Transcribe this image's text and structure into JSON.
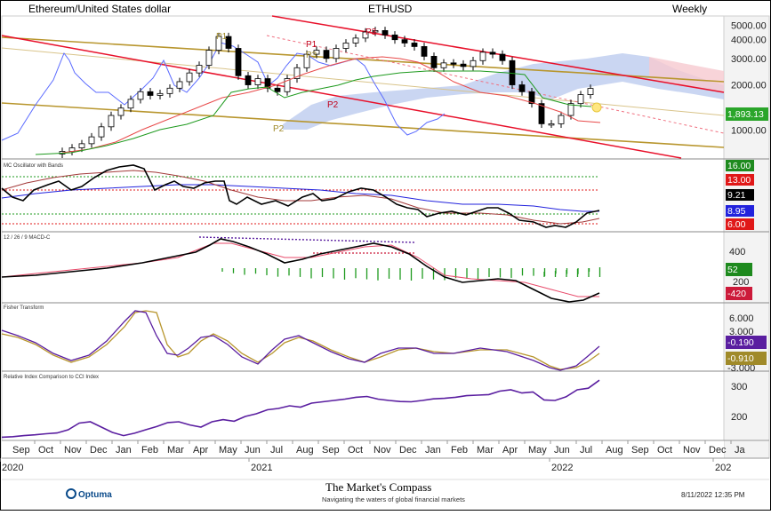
{
  "header": {
    "left_title": "Ethereum/United States dollar",
    "center_title": "ETHUSD",
    "right_title": "Weekly"
  },
  "chart_data": [
    {
      "type": "candlestick",
      "panel": "price",
      "yscale": "log",
      "ylim": [
        650,
        5600
      ],
      "yticks": [
        "5000.00",
        "4000.00",
        "3000.00",
        "2000.00",
        "1000.00"
      ],
      "ytick_values": [
        5000,
        4000,
        3000,
        2000,
        1000
      ],
      "last_price_label": "1,893.13",
      "last_price": 1893.13,
      "annotations": [
        {
          "text": "P1",
          "color": "#a08a2a"
        },
        {
          "text": "P2",
          "color": "#a08a2a"
        },
        {
          "text": "P1",
          "color": "#c0001a"
        },
        {
          "text": "P3",
          "color": "#a08a2a"
        },
        {
          "text": "P2",
          "color": "#c0001a"
        },
        {
          "text": "P3",
          "color": "#c0001a"
        }
      ],
      "close_series": [
        720,
        760,
        810,
        900,
        1050,
        1250,
        1400,
        1600,
        1800,
        1700,
        1750,
        1900,
        2100,
        2400,
        2700,
        3400,
        4200,
        3500,
        2300,
        2000,
        2200,
        1900,
        1800,
        2200,
        2600,
        3200,
        3400,
        3000,
        3500,
        3800,
        4100,
        4500,
        4600,
        4300,
        4000,
        3800,
        3600,
        3100,
        2600,
        2800,
        2750,
        2650,
        2900,
        3300,
        3200,
        2900,
        2000,
        1800,
        1500,
        1100,
        1100,
        1250,
        1500,
        1720,
        1893
      ]
    },
    {
      "type": "line",
      "panel": "momentum",
      "title": "MC Oscillator with Bands",
      "badges": [
        {
          "text": "16.00",
          "color": "#1e8a1e"
        },
        {
          "text": "13.00",
          "color": "#e01818"
        },
        {
          "text": "9.21",
          "color": "#000000"
        },
        {
          "text": "8.95",
          "color": "#2222dd"
        },
        {
          "text": "6.00",
          "color": "#e01818"
        }
      ]
    },
    {
      "type": "line",
      "panel": "macd",
      "title": "12 / 26 / 9 MACD-C",
      "yticks": [
        "400",
        "200"
      ],
      "badges": [
        {
          "text": "52",
          "color": "#1e8a1e"
        },
        {
          "text": "-420",
          "color": "#cc1a3a"
        }
      ]
    },
    {
      "type": "line",
      "panel": "fisher",
      "title": "Fisher Transform",
      "yticks": [
        "6.000",
        "3.000",
        "-3.000"
      ],
      "badges": [
        {
          "text": "-0.190",
          "color": "#5a1ea0"
        },
        {
          "text": "-0.910",
          "color": "#a08a2a"
        }
      ]
    },
    {
      "type": "line",
      "panel": "relative",
      "title": "Relative Index Comparison to CCI Index",
      "yticks": [
        "300",
        "200"
      ],
      "series": [
        {
          "values": [
            112,
            114,
            118,
            121,
            125,
            128,
            140,
            165,
            170,
            150,
            130,
            118,
            127,
            140,
            152,
            167,
            170,
            158,
            150,
            170,
            178,
            172,
            190,
            200,
            215,
            220,
            230,
            225,
            240,
            245,
            250,
            255,
            262,
            265,
            255,
            250,
            246,
            245,
            250,
            256,
            258,
            262,
            268,
            270,
            272,
            285,
            290,
            278,
            282,
            252,
            250,
            264,
            290,
            296,
            326
          ]
        }
      ]
    }
  ],
  "x_axis": {
    "months": [
      "Sep",
      "Oct",
      "Nov",
      "Dec",
      "Jan",
      "Feb",
      "Mar",
      "Apr",
      "May",
      "Jun",
      "Jul",
      "Aug",
      "Sep",
      "Oct",
      "Nov",
      "Dec",
      "Jan",
      "Feb",
      "Mar",
      "Apr",
      "May",
      "Jun",
      "Jul",
      "Aug",
      "Sep",
      "Oct",
      "Nov",
      "Dec",
      "Ja"
    ],
    "years": [
      "2020",
      "2021",
      "2022",
      "202"
    ]
  },
  "footer": {
    "logo_text": "Optuma",
    "brand_title": "The Market's Compass",
    "brand_tagline": "Navigating the waters of global financial markets",
    "timestamp": "8/11/2022 12:35 PM"
  },
  "colors": {
    "up_candle": "#ffffff",
    "down_candle": "#000000",
    "red_channel": "#e8102a",
    "gold_trend": "#b8962e",
    "cloud": "#b8c8ee",
    "lagging_line": "#5b6bff",
    "green_line": "#1e9a1e",
    "purple_line": "#5a1ea0"
  }
}
